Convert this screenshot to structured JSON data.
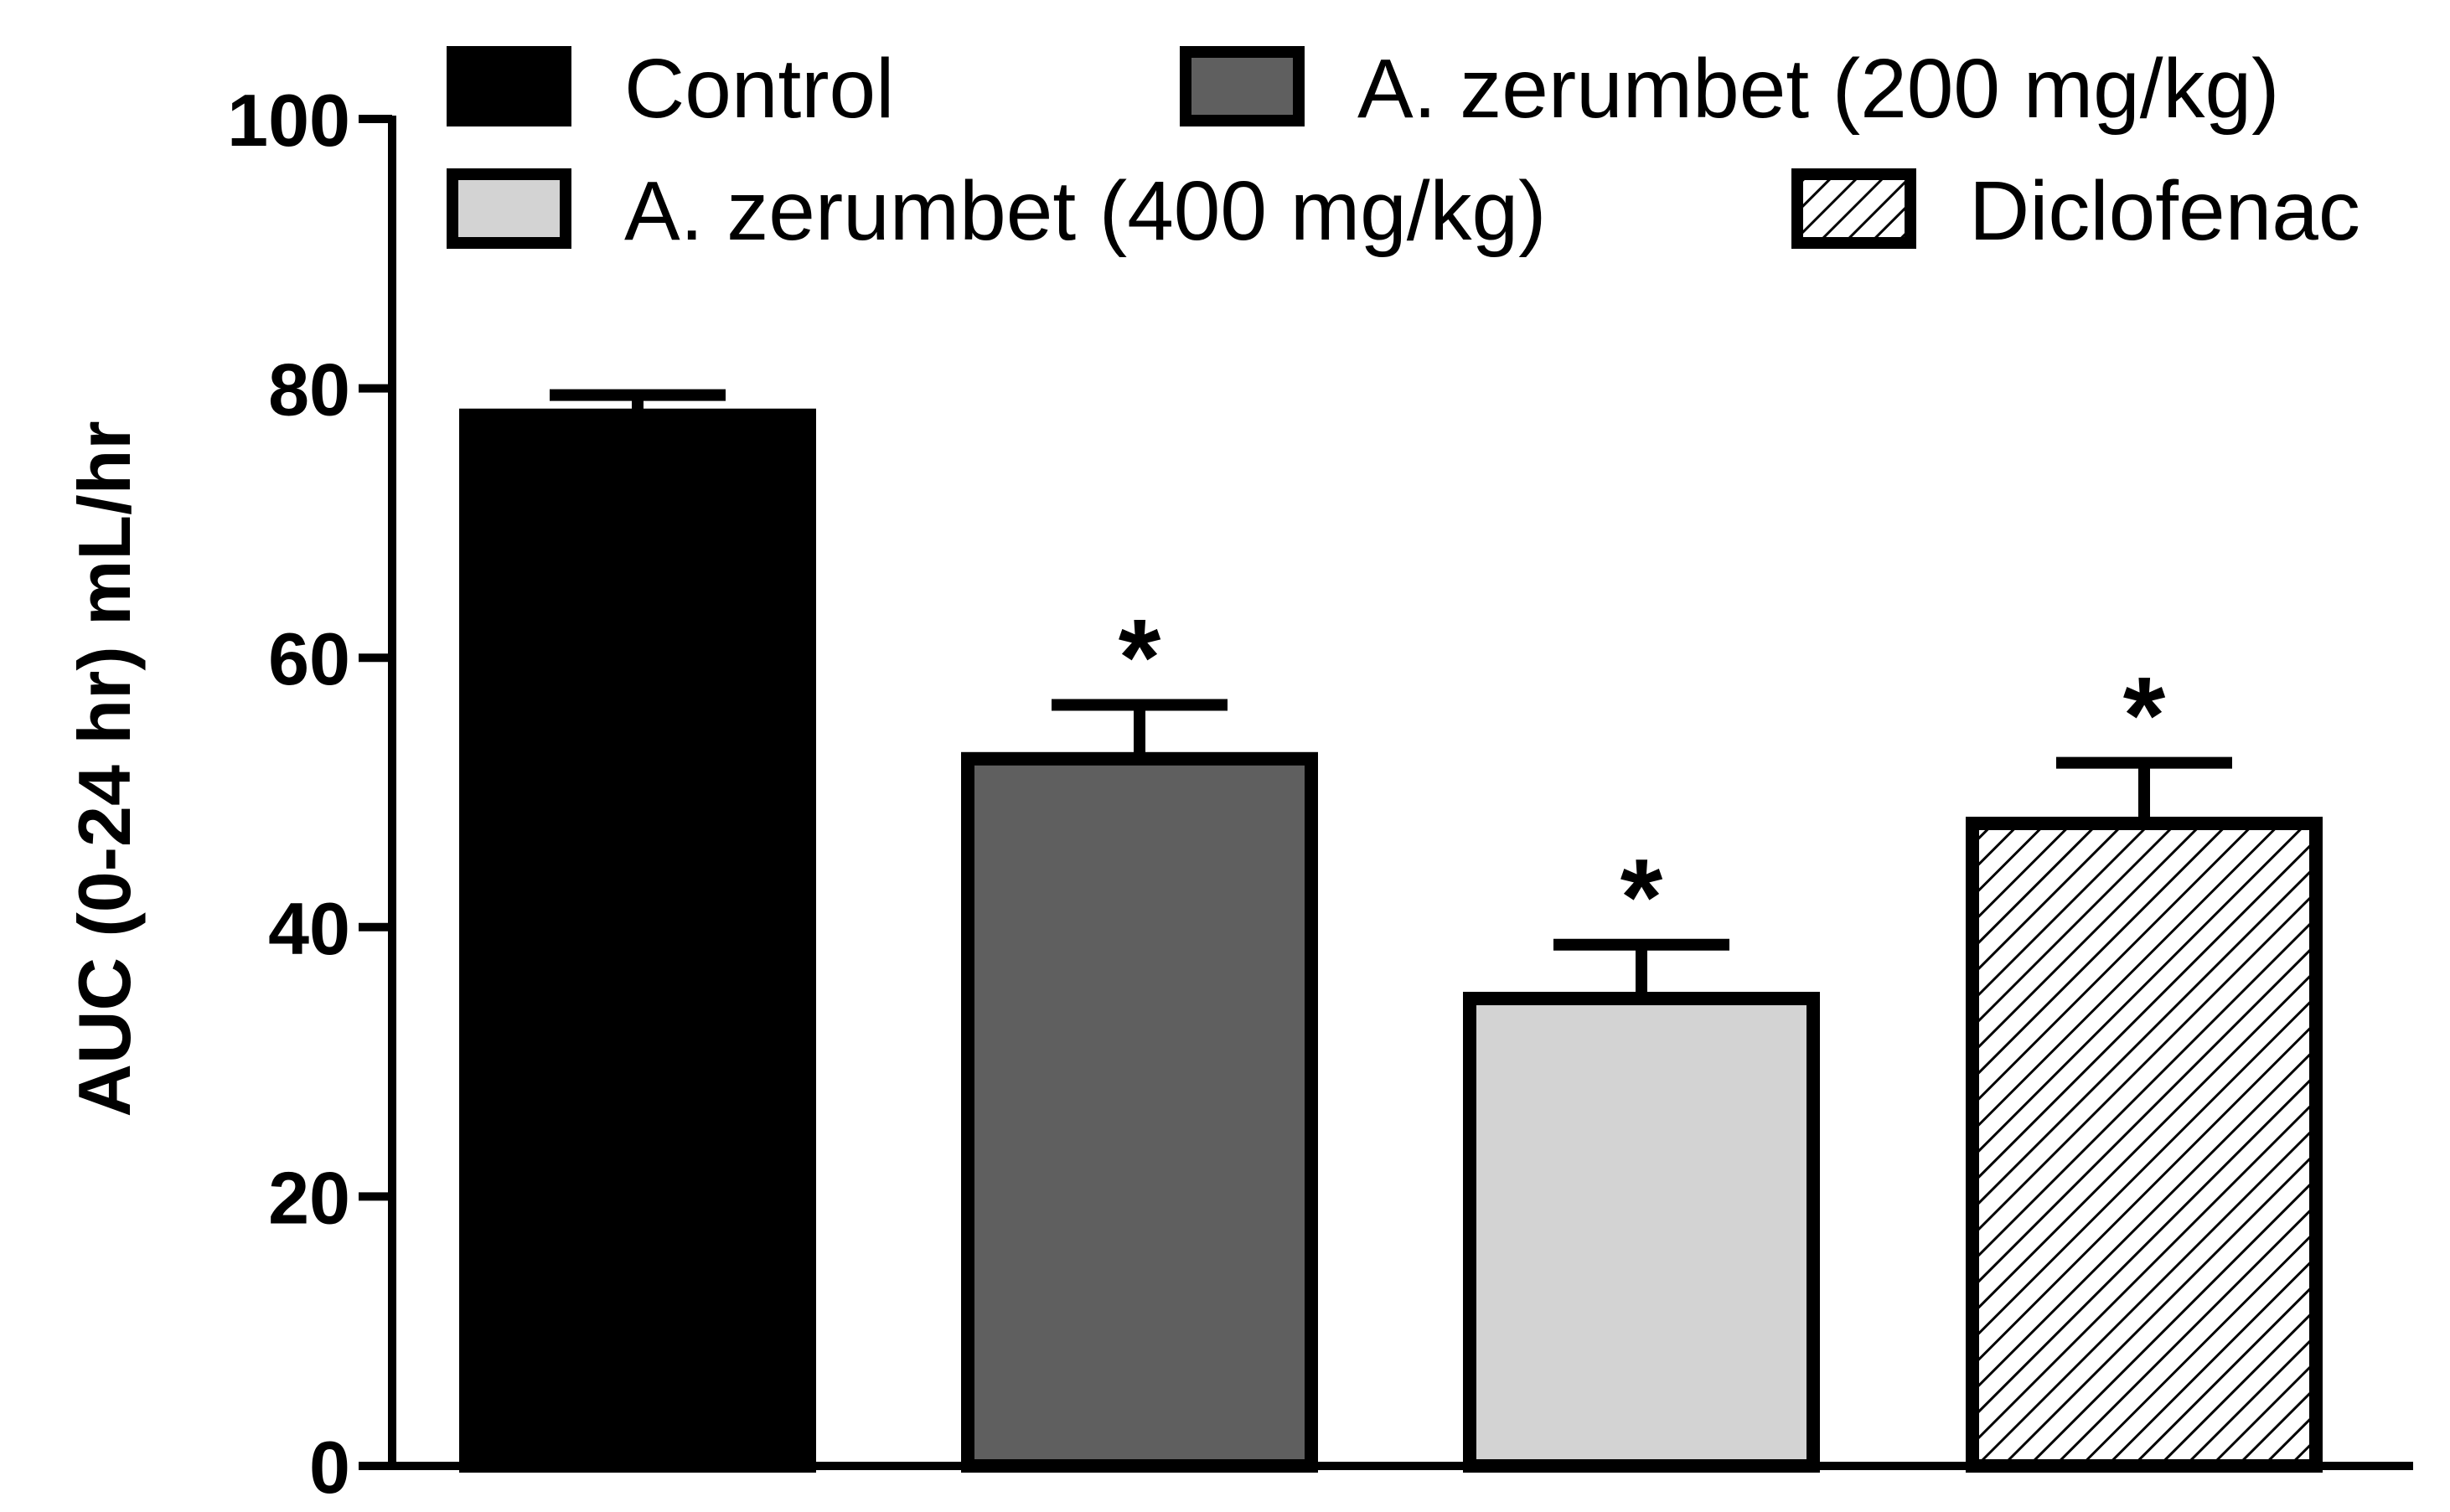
{
  "chart_data": {
    "type": "bar",
    "ylabel": "AUC (0-24 hr) mL/hr",
    "xlabel": "",
    "ylim": [
      0,
      100
    ],
    "yticks": [
      0,
      20,
      40,
      60,
      80,
      100
    ],
    "grid": false,
    "legend_position": "top",
    "series": [
      {
        "name": "Control",
        "value": 78,
        "error": 1.5,
        "fill": "#000000",
        "pattern": "solid",
        "marker": ""
      },
      {
        "name": "A. zerumbet (200 mg/kg)",
        "value": 52.5,
        "error": 4,
        "fill": "#5f5f5f",
        "pattern": "solid",
        "marker": "*"
      },
      {
        "name": "A. zerumbet (400 mg/kg)",
        "value": 34.7,
        "error": 4,
        "fill": "#d3d3d3",
        "pattern": "solid",
        "marker": "*"
      },
      {
        "name": "Diclofenac",
        "value": 47.7,
        "error": 4.5,
        "fill": "#ffffff",
        "pattern": "hatch",
        "marker": "*"
      }
    ]
  }
}
